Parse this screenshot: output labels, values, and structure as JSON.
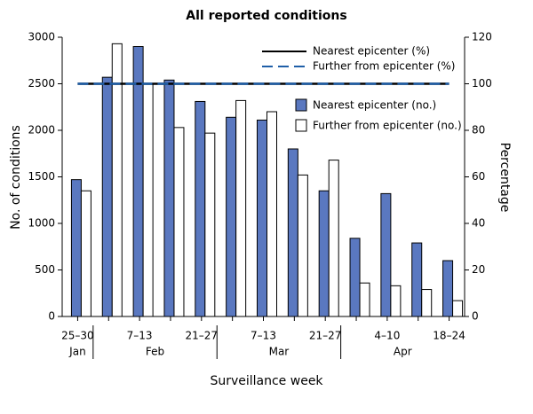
{
  "chart_data": {
    "type": "bar",
    "title": "All reported conditions",
    "xlabel": "Surveillance week",
    "ylabel": "No. of conditions",
    "y2label": "Percentage",
    "categories": [
      "25–30",
      null,
      "7–13",
      null,
      "21–27",
      null,
      "7–13",
      null,
      "21–27",
      null,
      "4–10",
      null,
      "18–24"
    ],
    "month_groups": [
      {
        "label": "Jan",
        "weeks": 1
      },
      {
        "label": "Feb",
        "weeks": 4
      },
      {
        "label": "Mar",
        "weeks": 4
      },
      {
        "label": "Apr",
        "weeks": 4
      }
    ],
    "series": [
      {
        "name": "Nearest epicenter (no.)",
        "color": "#5a78c0",
        "values": [
          1470,
          2570,
          2900,
          2540,
          2310,
          2140,
          2110,
          1800,
          1350,
          840,
          1320,
          790,
          600
        ]
      },
      {
        "name": "Further from epicenter (no.)",
        "color": "#ffffff",
        "values": [
          1350,
          2930,
          2500,
          2030,
          1970,
          2320,
          2200,
          1520,
          1680,
          360,
          330,
          290,
          170
        ]
      },
      {
        "name": "Nearest epicenter (%)",
        "type": "line",
        "axis": "y2",
        "color": "#000000",
        "values": [
          100,
          100,
          100,
          100,
          100,
          100,
          100,
          100,
          100,
          100,
          100,
          100,
          100
        ]
      },
      {
        "name": "Further from epicenter (%)",
        "type": "line",
        "axis": "y2",
        "dashed": true,
        "color": "#1f5fa8",
        "values": [
          100,
          100,
          100,
          100,
          100,
          100,
          100,
          100,
          100,
          100,
          100,
          100,
          100
        ]
      }
    ],
    "ylim": [
      0,
      3000
    ],
    "yticks": [
      0,
      500,
      1000,
      1500,
      2000,
      2500,
      3000
    ],
    "y2lim": [
      0,
      120
    ],
    "y2ticks": [
      0,
      20,
      40,
      60,
      80,
      100,
      120
    ],
    "grid": false
  }
}
